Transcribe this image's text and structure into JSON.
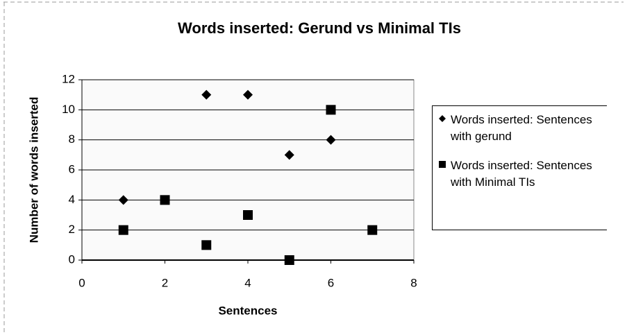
{
  "chart_data": {
    "type": "scatter",
    "title": "Words inserted: Gerund vs Minimal TIs",
    "x_label": "Sentences",
    "y_label": "Number of words inserted",
    "xlim": [
      0,
      8
    ],
    "xticks": [
      0,
      2,
      4,
      6,
      8
    ],
    "ylim": [
      0,
      12
    ],
    "yticks": [
      0,
      2,
      4,
      6,
      8,
      10,
      12
    ],
    "grid": true,
    "legend": "right",
    "series": [
      {
        "name": "Words inserted: Sentences with gerund",
        "color": "#000000",
        "marker": "diamond",
        "x": [
          1,
          3,
          4,
          5,
          6
        ],
        "values": [
          4,
          11,
          11,
          7,
          8
        ]
      },
      {
        "name": "Words inserted: Sentences with Minimal TIs",
        "color": "#000000",
        "marker": "square",
        "x": [
          1,
          2,
          3,
          4,
          5,
          6,
          7
        ],
        "values": [
          2,
          4,
          1,
          3,
          0,
          10,
          2
        ]
      }
    ]
  }
}
